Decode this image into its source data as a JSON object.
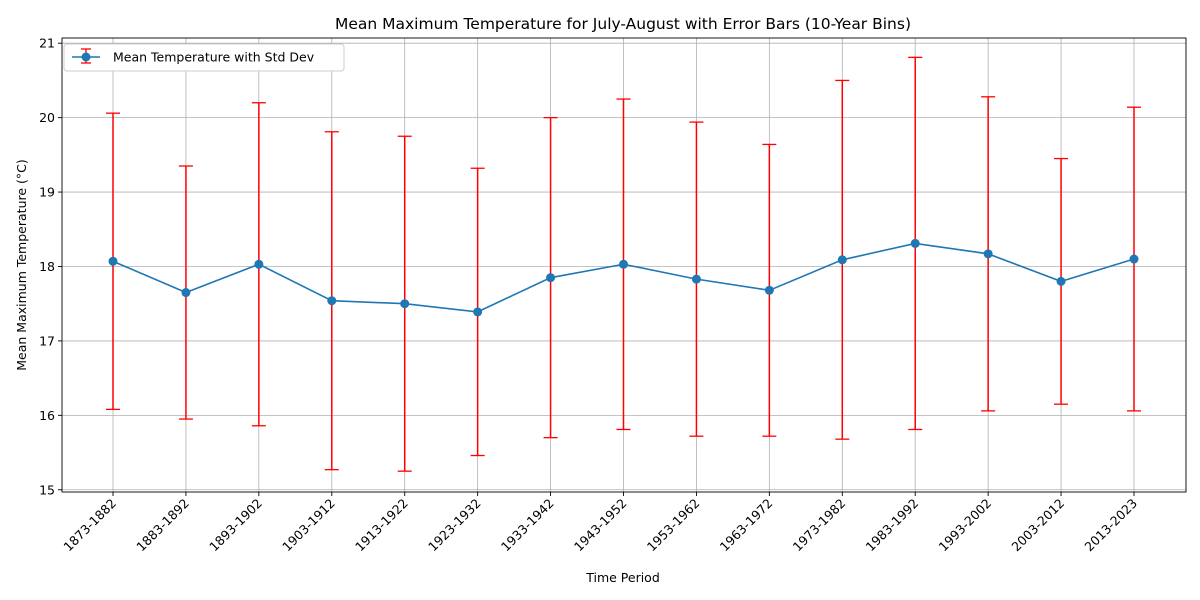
{
  "chart_data": {
    "type": "line",
    "title": "Mean Maximum Temperature for July-August with Error Bars (10-Year Bins)",
    "xlabel": "Time Period",
    "ylabel": "Mean Maximum Temperature (°C)",
    "categories": [
      "1873-1882",
      "1883-1892",
      "1893-1902",
      "1903-1912",
      "1913-1922",
      "1923-1932",
      "1933-1942",
      "1943-1952",
      "1953-1962",
      "1963-1972",
      "1973-1982",
      "1983-1992",
      "1993-2002",
      "2003-2012",
      "2013-2023"
    ],
    "series": [
      {
        "name": "Mean Temperature with Std Dev",
        "values": [
          18.07,
          17.65,
          18.03,
          17.54,
          17.5,
          17.39,
          17.85,
          18.03,
          17.83,
          17.68,
          18.09,
          18.31,
          18.17,
          17.8,
          18.1
        ],
        "std": [
          1.99,
          1.7,
          2.17,
          2.27,
          2.25,
          1.93,
          2.15,
          2.22,
          2.11,
          1.96,
          2.41,
          2.5,
          2.11,
          1.65,
          2.04
        ]
      }
    ],
    "ylim": [
      14.97,
      21.07
    ],
    "yticks": [
      15,
      16,
      17,
      18,
      19,
      20,
      21
    ],
    "grid": true,
    "legend_position": "top-left",
    "colors": {
      "line": "#1f77b4",
      "errorbar": "#ff0000",
      "grid": "#b0b0b0"
    }
  }
}
